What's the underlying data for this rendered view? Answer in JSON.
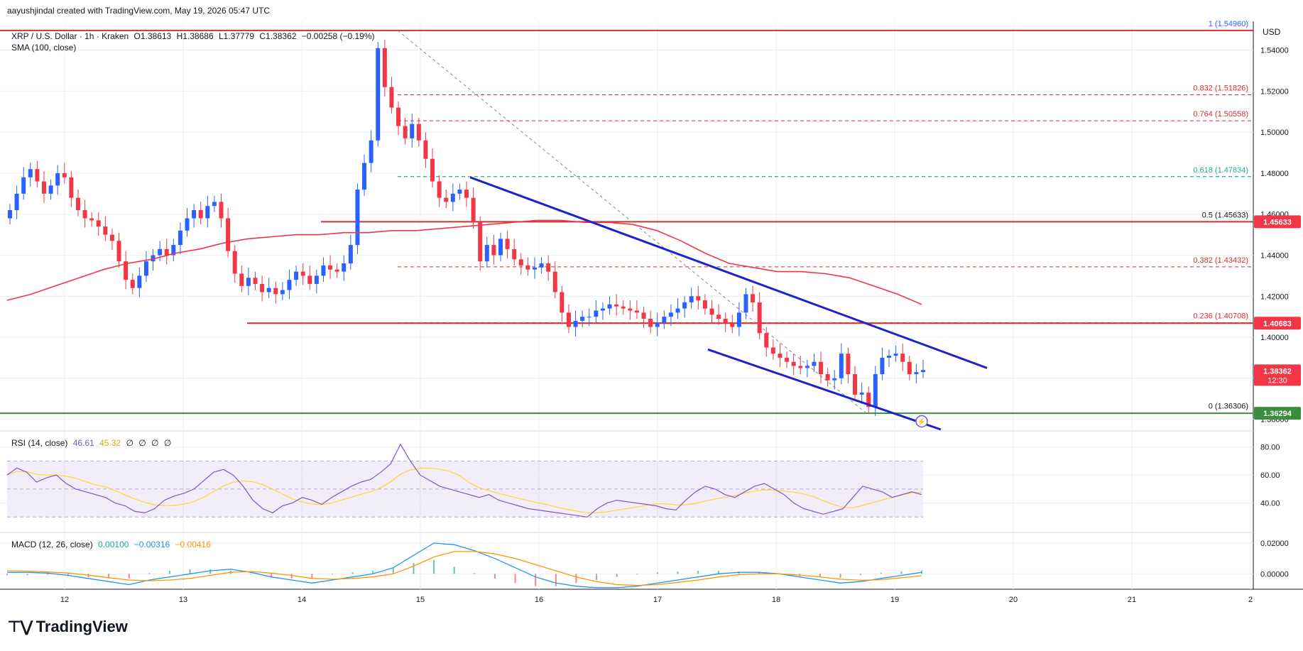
{
  "header": {
    "created_by": "aayushjindal created with TradingView.com, May 19, 2026 05:47 UTC"
  },
  "symbol": {
    "title": "XRP / U.S. Dollar · 1h · Kraken",
    "open": "O1.38613",
    "high": "H1.38686",
    "low": "L1.37779",
    "close": "C1.38362",
    "change": "−0.00258 (−0.19%)"
  },
  "indicators": {
    "sma_label": "SMA (100, close)",
    "rsi_label": "RSI (14, close)",
    "rsi_values": [
      "46.61",
      "45.32",
      "∅",
      "∅",
      "∅",
      "∅"
    ],
    "macd_label": "MACD (12, 26, close)",
    "macd_values": [
      "0.00100",
      "−0.00316",
      "−0.00416"
    ]
  },
  "currency": "USD",
  "footer": {
    "brand": "TradingView"
  },
  "colors": {
    "up": "#2962ff",
    "down": "#f23645",
    "sma": "#f23645",
    "trend": "#1e22c9",
    "support": "#388e3c",
    "resistance": "#d32f2f",
    "rsi_line": "#7e57c2",
    "rsi_ma": "#fdd835",
    "macd_line": "#2196f3",
    "signal_line": "#ff9800",
    "fib_green": "#22ab94",
    "fib_red": "#d32f2f"
  },
  "chart_data": {
    "type": "candlestick",
    "x_ticks": [
      "12",
      "13",
      "14",
      "15",
      "16",
      "17",
      "18",
      "19",
      "20",
      "21",
      "2"
    ],
    "y_ticks": [
      "1.54000",
      "1.52000",
      "1.50000",
      "1.48000",
      "1.46000",
      "1.44000",
      "1.42000",
      "1.40000",
      "1.38000",
      "1.36000"
    ],
    "ylim": [
      1.355,
      1.552
    ],
    "price_badges": [
      {
        "label": "1.45633",
        "value": 1.45633,
        "color": "#f23645"
      },
      {
        "label": "1.40683",
        "value": 1.40683,
        "color": "#f23645"
      },
      {
        "label": "1.38362",
        "sub": "12:30",
        "value": 1.38362,
        "color": "#f23645"
      },
      {
        "label": "1.36294",
        "value": 1.36294,
        "color": "#388e3c"
      }
    ],
    "fib_levels": [
      {
        "label": "1 (1.54960)",
        "value": 1.5496,
        "color": "#2962ff"
      },
      {
        "label": "0.832 (1.51826)",
        "value": 1.51826,
        "color": "#d32f2f"
      },
      {
        "label": "0.764 (1.50558)",
        "value": 1.50558,
        "color": "#d32f2f"
      },
      {
        "label": "0.618 (1.47834)",
        "value": 1.47834,
        "color": "#22ab94"
      },
      {
        "label": "0.5 (1.45633)",
        "value": 1.45633,
        "color": "#131722"
      },
      {
        "label": "0.382 (1.43432)",
        "value": 1.43432,
        "color": "#d32f2f"
      },
      {
        "label": "0.236 (1.40708)",
        "value": 1.40708,
        "color": "#d32f2f"
      },
      {
        "label": "0 (1.36306)",
        "value": 1.36306,
        "color": "#131722"
      }
    ],
    "close_series": [
      1.462,
      1.47,
      1.478,
      1.482,
      1.476,
      1.47,
      1.474,
      1.48,
      1.478,
      1.468,
      1.462,
      1.458,
      1.457,
      1.454,
      1.45,
      1.447,
      1.437,
      1.428,
      1.424,
      1.43,
      1.437,
      1.44,
      1.443,
      1.44,
      1.445,
      1.452,
      1.458,
      1.462,
      1.458,
      1.464,
      1.466,
      1.458,
      1.442,
      1.431,
      1.425,
      1.429,
      1.426,
      1.422,
      1.424,
      1.421,
      1.423,
      1.428,
      1.432,
      1.43,
      1.426,
      1.43,
      1.435,
      1.433,
      1.432,
      1.436,
      1.445,
      1.472,
      1.485,
      1.496,
      1.541,
      1.522,
      1.512,
      1.503,
      1.497,
      1.504,
      1.496,
      1.487,
      1.476,
      1.468,
      1.466,
      1.47,
      1.472,
      1.468,
      1.456,
      1.437,
      1.445,
      1.44,
      1.448,
      1.443,
      1.438,
      1.435,
      1.433,
      1.434,
      1.436,
      1.432,
      1.422,
      1.412,
      1.405,
      1.408,
      1.41,
      1.41,
      1.413,
      1.414,
      1.416,
      1.415,
      1.414,
      1.413,
      1.412,
      1.409,
      1.405,
      1.407,
      1.41,
      1.412,
      1.414,
      1.417,
      1.42,
      1.418,
      1.414,
      1.411,
      1.409,
      1.407,
      1.405,
      1.412,
      1.421,
      1.417,
      1.402,
      1.395,
      1.392,
      1.39,
      1.388,
      1.386,
      1.385,
      1.386,
      1.388,
      1.382,
      1.379,
      1.38,
      1.392,
      1.382,
      1.372,
      1.373,
      1.366,
      1.382,
      1.39,
      1.391,
      1.392,
      1.388,
      1.382,
      1.383,
      1.384
    ],
    "sma_series_note": "SMA(100) values",
    "sma_series": [
      1.418,
      1.421,
      1.425,
      1.429,
      1.433,
      1.436,
      1.438,
      1.441,
      1.443,
      1.446,
      1.448,
      1.449,
      1.45,
      1.45,
      1.451,
      1.451,
      1.452,
      1.452,
      1.453,
      1.454,
      1.455,
      1.456,
      1.457,
      1.457,
      1.456,
      1.456,
      1.455,
      1.452,
      1.447,
      1.441,
      1.436,
      1.434,
      1.432,
      1.432,
      1.431,
      1.429,
      1.425,
      1.421,
      1.416
    ],
    "trendlines": [
      {
        "name": "upper",
        "from": [
          0.0,
          1.478
        ],
        "to": [
          1.0,
          1.385
        ]
      },
      {
        "name": "lower",
        "from": [
          0.0,
          1.394
        ],
        "to": [
          1.0,
          1.354
        ]
      }
    ],
    "support_level": 1.36294,
    "resistance_levels": [
      1.45633,
      1.40683,
      1.5496
    ],
    "rsi": {
      "y_ticks": [
        "80.00",
        "60.00",
        "40.00"
      ],
      "ylim": [
        20,
        90
      ],
      "band": [
        30,
        70
      ],
      "series": [
        60,
        65,
        62,
        55,
        58,
        60,
        54,
        50,
        48,
        46,
        44,
        40,
        38,
        34,
        33,
        36,
        42,
        45,
        47,
        50,
        56,
        62,
        64,
        60,
        52,
        42,
        36,
        33,
        38,
        40,
        44,
        42,
        39,
        44,
        48,
        52,
        55,
        57,
        62,
        68,
        82,
        70,
        60,
        56,
        52,
        50,
        48,
        46,
        44,
        46,
        42,
        40,
        38,
        36,
        35,
        34,
        33,
        32,
        31,
        30,
        36,
        40,
        42,
        41,
        40,
        39,
        38,
        36,
        35,
        42,
        48,
        52,
        50,
        46,
        44,
        48,
        52,
        54,
        50,
        46,
        40,
        36,
        34,
        32,
        34,
        36,
        44,
        52,
        50,
        48,
        44,
        46,
        48,
        46
      ]
    },
    "macd": {
      "y_ticks": [
        "0.02000",
        "0.00000"
      ],
      "ylim": [
        -0.01,
        0.026
      ],
      "macd_series": [
        0.001,
        0.001,
        0.0005,
        -0.001,
        -0.003,
        -0.005,
        -0.007,
        -0.004,
        -0.002,
        0.0,
        0.002,
        0.003,
        0.001,
        -0.002,
        -0.004,
        -0.006,
        -0.004,
        -0.002,
        0.0,
        0.004,
        0.012,
        0.02,
        0.019,
        0.015,
        0.01,
        0.004,
        -0.002,
        -0.006,
        -0.008,
        -0.009,
        -0.009,
        -0.008,
        -0.006,
        -0.004,
        -0.002,
        0.0,
        0.001,
        0.001,
        0.0,
        -0.002,
        -0.004,
        -0.006,
        -0.005,
        -0.003,
        -0.001,
        0.001
      ],
      "signal_series": [
        0.002,
        0.0018,
        0.0012,
        0.0005,
        -0.0008,
        -0.0025,
        -0.004,
        -0.0045,
        -0.004,
        -0.003,
        -0.001,
        0.001,
        0.0015,
        0.0005,
        -0.001,
        -0.003,
        -0.0035,
        -0.003,
        -0.002,
        0.0,
        0.005,
        0.011,
        0.0145,
        0.0145,
        0.013,
        0.01,
        0.006,
        0.002,
        -0.002,
        -0.005,
        -0.007,
        -0.0075,
        -0.007,
        -0.0055,
        -0.004,
        -0.002,
        -0.0005,
        0.0,
        0.0,
        -0.0008,
        -0.002,
        -0.0035,
        -0.0042,
        -0.0038,
        -0.0025,
        -0.0012
      ]
    }
  }
}
